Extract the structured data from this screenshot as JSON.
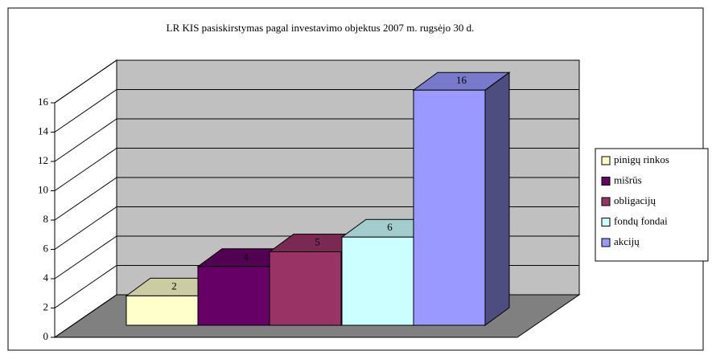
{
  "chart_data": {
    "type": "bar3d",
    "title": "LR KIS pasiskirstymas pagal investavimo objektus 2007 m. rugsėjo 30 d.",
    "series": [
      {
        "name": "pinigų rinkos",
        "color": "#ffffcc",
        "values": [
          2
        ]
      },
      {
        "name": "mišrūs",
        "color": "#660066",
        "values": [
          4
        ]
      },
      {
        "name": "obligacijų",
        "color": "#993366",
        "values": [
          5
        ]
      },
      {
        "name": "fondų fondai",
        "color": "#ccffff",
        "values": [
          6
        ]
      },
      {
        "name": "akcijų",
        "color": "#9999ff",
        "values": [
          16
        ]
      }
    ],
    "ylim": [
      0,
      16
    ],
    "yticks": [
      0,
      2,
      4,
      6,
      8,
      10,
      12,
      14,
      16
    ],
    "grid": true,
    "legend": "right"
  }
}
